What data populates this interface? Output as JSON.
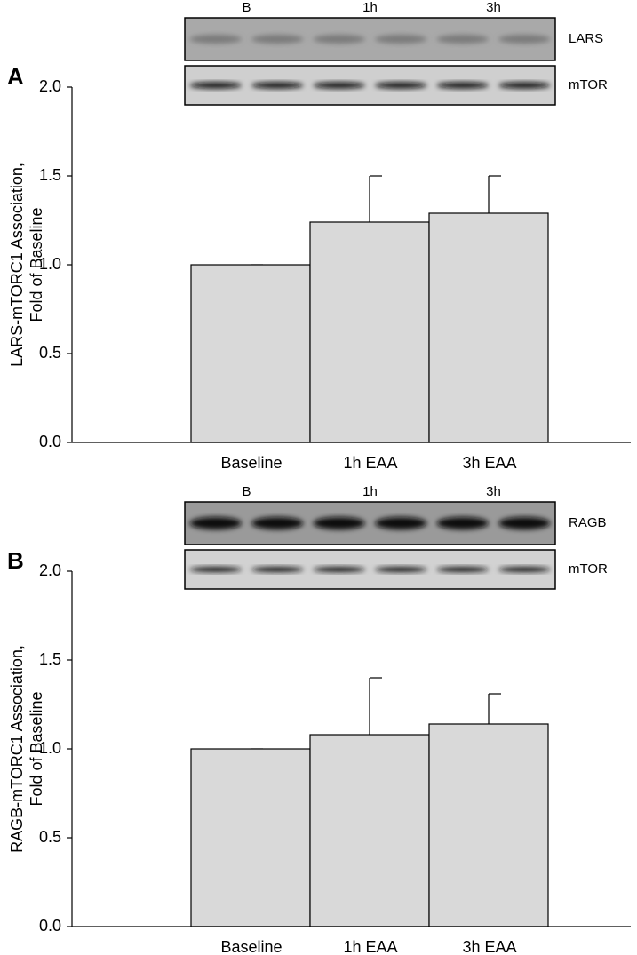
{
  "chart_data": [
    {
      "type": "bar",
      "panel": "A",
      "ylabel": [
        "LARS-mTORC1 Association,",
        "Fold of Baseline"
      ],
      "categories": [
        "Baseline",
        "1h EAA",
        "3h EAA"
      ],
      "values": [
        1.0,
        1.24,
        1.29
      ],
      "errors": [
        0,
        0.26,
        0.21
      ],
      "color": "#d9d9d9",
      "ylim": [
        0,
        2
      ],
      "yticks": [
        {
          "value": 0,
          "label": "0.0"
        },
        0.5,
        {
          "value": 1,
          "label": "1.0"
        },
        1.5,
        {
          "value": 2,
          "label": "2.0"
        }
      ],
      "blot": {
        "lanes": [
          "B",
          "1h",
          "3h"
        ],
        "bands": [
          "LARS",
          "mTOR"
        ]
      }
    },
    {
      "type": "bar",
      "panel": "B",
      "ylabel": [
        "RAGB-mTORC1 Association,",
        "Fold of Baseline"
      ],
      "categories": [
        "Baseline",
        "1h EAA",
        "3h EAA"
      ],
      "values": [
        1.0,
        1.08,
        1.14
      ],
      "errors": [
        0,
        0.32,
        0.17
      ],
      "color": "#d9d9d9",
      "ylim": [
        0,
        2
      ],
      "yticks": [
        {
          "value": 0,
          "label": "0.0"
        },
        0.5,
        {
          "value": 1,
          "label": "1.0"
        },
        1.5,
        {
          "value": 2,
          "label": "2.0"
        }
      ],
      "blot": {
        "lanes": [
          "B",
          "1h",
          "3h"
        ],
        "bands": [
          "RAGB",
          "mTOR"
        ]
      }
    }
  ]
}
